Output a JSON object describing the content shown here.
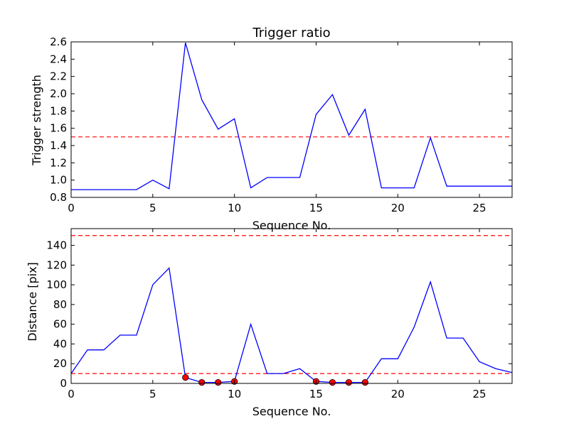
{
  "colors": {
    "line": "#0000ff",
    "threshold": "#ff0000",
    "marker_fill": "#ff0000",
    "marker_edge": "#000000"
  },
  "chart_data": [
    {
      "type": "line",
      "title": "Trigger ratio",
      "xlabel": "Sequence No.",
      "ylabel": "Trigger strength",
      "xlim": [
        0,
        27
      ],
      "ylim": [
        0.8,
        2.6
      ],
      "grid": false,
      "xticks": [
        "0",
        "5",
        "10",
        "15",
        "20",
        "25"
      ],
      "xtick_values": [
        0,
        5,
        10,
        15,
        20,
        25
      ],
      "yticks": [
        "0.8",
        "1.0",
        "1.2",
        "1.4",
        "1.6",
        "1.8",
        "2.0",
        "2.2",
        "2.4",
        "2.6"
      ],
      "ytick_values": [
        0.8,
        1.0,
        1.2,
        1.4,
        1.6,
        1.8,
        2.0,
        2.2,
        2.4,
        2.6
      ],
      "x": [
        0,
        1,
        2,
        3,
        4,
        5,
        6,
        7,
        8,
        9,
        10,
        11,
        12,
        13,
        14,
        15,
        16,
        17,
        18,
        19,
        20,
        21,
        22,
        23,
        24,
        25,
        26,
        27
      ],
      "series": [
        {
          "values": [
            0.89,
            0.89,
            0.89,
            0.89,
            0.89,
            1.0,
            0.9,
            2.59,
            1.93,
            1.59,
            1.71,
            0.91,
            1.03,
            1.03,
            1.03,
            1.76,
            1.99,
            1.52,
            1.82,
            0.91,
            0.91,
            0.91,
            1.49,
            0.93,
            0.93,
            0.93,
            0.93,
            0.93
          ]
        }
      ],
      "hlines": [
        1.5
      ]
    },
    {
      "type": "line",
      "title": "",
      "xlabel": "Sequence No.",
      "ylabel": "Distance [pix]",
      "xlim": [
        0,
        27
      ],
      "ylim": [
        0,
        157
      ],
      "grid": false,
      "xticks": [
        "0",
        "5",
        "10",
        "15",
        "20",
        "25"
      ],
      "xtick_values": [
        0,
        5,
        10,
        15,
        20,
        25
      ],
      "yticks": [
        "0",
        "20",
        "40",
        "60",
        "80",
        "100",
        "120",
        "140"
      ],
      "ytick_values": [
        0,
        20,
        40,
        60,
        80,
        100,
        120,
        140
      ],
      "x": [
        0,
        1,
        2,
        3,
        4,
        5,
        6,
        7,
        8,
        9,
        10,
        11,
        12,
        13,
        14,
        15,
        16,
        17,
        18,
        19,
        20,
        21,
        22,
        23,
        24,
        25,
        26,
        27
      ],
      "series": [
        {
          "values": [
            10,
            34,
            34,
            49,
            49,
            100,
            117,
            6,
            1,
            1,
            2,
            60,
            10,
            10,
            15,
            2,
            1,
            1,
            1,
            25,
            25,
            57,
            103,
            46,
            46,
            22,
            15,
            11
          ]
        }
      ],
      "markers": {
        "x": [
          7,
          8,
          9,
          10,
          15,
          16,
          17,
          18
        ],
        "y": [
          6,
          1,
          1,
          2,
          2,
          1,
          1,
          1
        ]
      },
      "hlines": [
        10,
        150
      ]
    }
  ]
}
